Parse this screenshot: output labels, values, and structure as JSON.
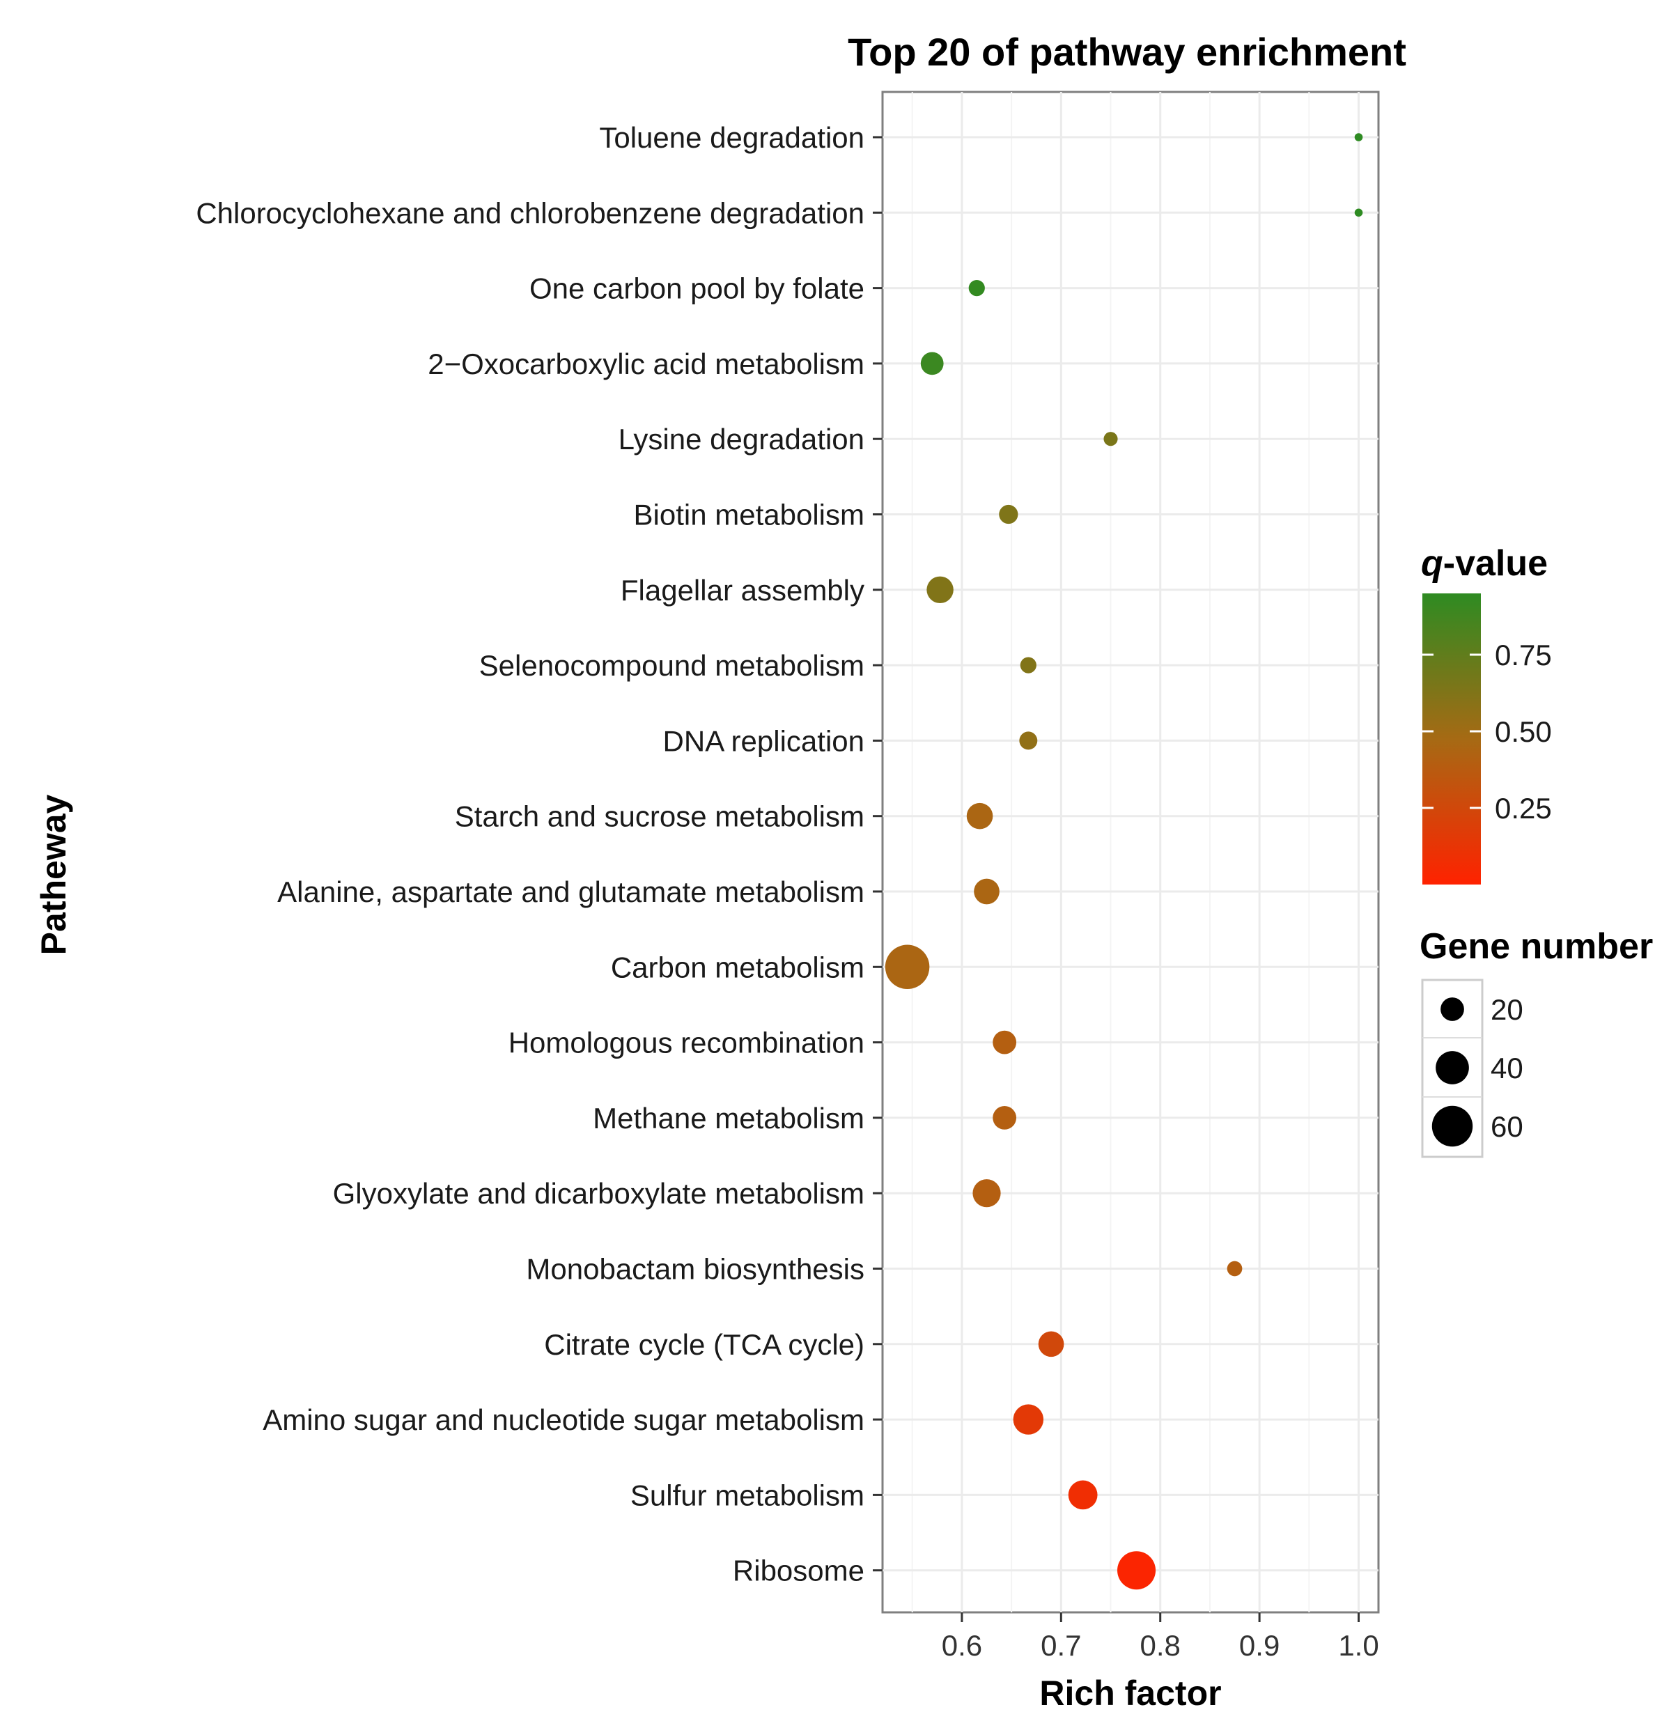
{
  "chart_data": {
    "type": "scatter",
    "title": "Top 20 of pathway enrichment",
    "xlabel": "Rich factor",
    "ylabel": "Patheway",
    "xlim": [
      0.52,
      1.02
    ],
    "xticks": [
      0.6,
      0.7,
      0.8,
      0.9,
      1.0
    ],
    "xtick_labels": [
      "0.6",
      "0.7",
      "0.8",
      "0.9",
      "1.0"
    ],
    "grid": true,
    "points": [
      {
        "pathway": "Toluene degradation",
        "rich_factor": 1.0,
        "q_value": 0.95,
        "gene_number": 2
      },
      {
        "pathway": "Chlorocyclohexane and chlorobenzene degradation",
        "rich_factor": 1.0,
        "q_value": 0.95,
        "gene_number": 2
      },
      {
        "pathway": "One carbon pool by folate",
        "rich_factor": 0.615,
        "q_value": 0.93,
        "gene_number": 8
      },
      {
        "pathway": "2−Oxocarboxylic acid metabolism",
        "rich_factor": 0.57,
        "q_value": 0.9,
        "gene_number": 16
      },
      {
        "pathway": "Lysine degradation",
        "rich_factor": 0.75,
        "q_value": 0.65,
        "gene_number": 6
      },
      {
        "pathway": "Biotin metabolism",
        "rich_factor": 0.647,
        "q_value": 0.63,
        "gene_number": 11
      },
      {
        "pathway": "Flagellar assembly",
        "rich_factor": 0.578,
        "q_value": 0.62,
        "gene_number": 22
      },
      {
        "pathway": "Selenocompound metabolism",
        "rich_factor": 0.667,
        "q_value": 0.62,
        "gene_number": 8
      },
      {
        "pathway": "DNA replication",
        "rich_factor": 0.667,
        "q_value": 0.56,
        "gene_number": 10
      },
      {
        "pathway": "Starch and sucrose metabolism",
        "rich_factor": 0.618,
        "q_value": 0.45,
        "gene_number": 21
      },
      {
        "pathway": "Alanine, aspartate and glutamate metabolism",
        "rich_factor": 0.625,
        "q_value": 0.45,
        "gene_number": 20
      },
      {
        "pathway": "Carbon metabolism",
        "rich_factor": 0.545,
        "q_value": 0.45,
        "gene_number": 60
      },
      {
        "pathway": "Homologous recombination",
        "rich_factor": 0.643,
        "q_value": 0.4,
        "gene_number": 17
      },
      {
        "pathway": "Methane metabolism",
        "rich_factor": 0.643,
        "q_value": 0.4,
        "gene_number": 17
      },
      {
        "pathway": "Glyoxylate and dicarboxylate metabolism",
        "rich_factor": 0.625,
        "q_value": 0.4,
        "gene_number": 24
      },
      {
        "pathway": "Monobactam biosynthesis",
        "rich_factor": 0.875,
        "q_value": 0.4,
        "gene_number": 7
      },
      {
        "pathway": "Citrate cycle (TCA cycle)",
        "rich_factor": 0.69,
        "q_value": 0.25,
        "gene_number": 20
      },
      {
        "pathway": "Amino sugar and nucleotide sugar metabolism",
        "rich_factor": 0.667,
        "q_value": 0.15,
        "gene_number": 28
      },
      {
        "pathway": "Sulfur metabolism",
        "rich_factor": 0.722,
        "q_value": 0.08,
        "gene_number": 26
      },
      {
        "pathway": "Ribosome",
        "rich_factor": 0.776,
        "q_value": 0.02,
        "gene_number": 45
      }
    ],
    "color_legend": {
      "title_italic": "q",
      "title_rest": "-value",
      "range": [
        0.0,
        0.95
      ],
      "ticks": [
        0.25,
        0.5,
        0.75
      ],
      "tick_labels": [
        "0.25",
        "0.50",
        "0.75"
      ],
      "low_color": "#ff2200",
      "mid_color": "#a66a14",
      "high_color": "#2e8b22"
    },
    "size_legend": {
      "title": "Gene number",
      "values": [
        20,
        40,
        60
      ],
      "labels": [
        "20",
        "40",
        "60"
      ],
      "dot_color": "#000000"
    },
    "legend_position": "right"
  }
}
